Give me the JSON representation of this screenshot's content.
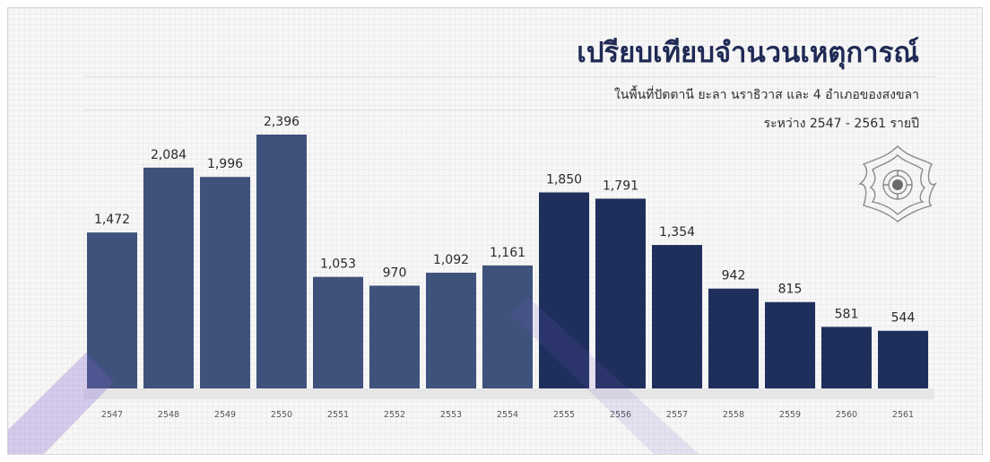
{
  "header": {
    "title": "เปรียบเทียบจำนวนเหตุการณ์",
    "subtitle_line1": "ในพื้นที่ปัตตานี ยะลา นราธิวาส และ 4 อำเภอของสงขลา",
    "subtitle_line2": "ระหว่าง 2547 -  2561 รายปี"
  },
  "colors": {
    "bar_light": "#3f527c",
    "bar_dark": "#1f2f5c",
    "title": "#1f2a55",
    "watermark": "#7b5fc9"
  },
  "emblem_icon": "ornamental-emblem-icon",
  "chart_data": {
    "type": "bar",
    "categories": [
      "2547",
      "2548",
      "2549",
      "2550",
      "2551",
      "2552",
      "2553",
      "2554",
      "2555",
      "2556",
      "2557",
      "2558",
      "2559",
      "2560",
      "2561"
    ],
    "values": [
      1472,
      2084,
      1996,
      2396,
      1053,
      970,
      1092,
      1161,
      1850,
      1791,
      1354,
      942,
      815,
      581,
      544
    ],
    "value_labels": [
      "1,472",
      "2,084",
      "1,996",
      "2,396",
      "1,053",
      "970",
      "1,092",
      "1,161",
      "1,850",
      "1,791",
      "1,354",
      "942",
      "815",
      "581",
      "544"
    ],
    "title": "เปรียบเทียบจำนวนเหตุการณ์",
    "xlabel": "",
    "ylabel": "",
    "ylim": [
      0,
      2500
    ],
    "grid": false,
    "legend": "none"
  }
}
